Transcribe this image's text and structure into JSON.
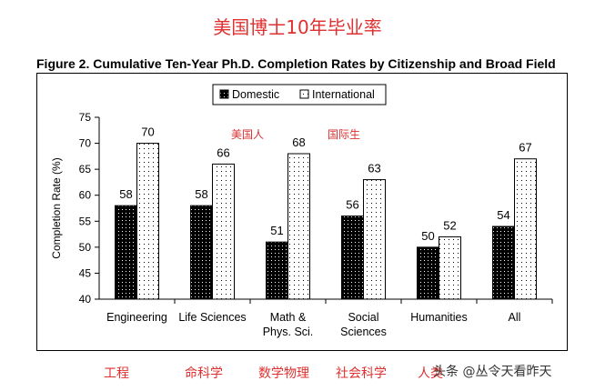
{
  "header": {
    "cn_title": "美国博士10年毕业率"
  },
  "chart_data": {
    "type": "bar",
    "title": "Figure 2. Cumulative Ten-Year Ph.D. Completion Rates by Citizenship and Broad Field",
    "ylabel": "Completion Rate (%)",
    "xlabel": "",
    "ylim": [
      40,
      75
    ],
    "yticks": [
      40,
      45,
      50,
      55,
      60,
      65,
      70,
      75
    ],
    "categories": [
      "Engineering",
      "Life Sciences",
      "Math &\nPhys. Sci.",
      "Social\nSciences",
      "Humanities",
      "All"
    ],
    "series": [
      {
        "name": "Domestic",
        "values": [
          58,
          58,
          51,
          56,
          50,
          54
        ],
        "pattern": "dark"
      },
      {
        "name": "International",
        "values": [
          70,
          66,
          68,
          63,
          52,
          67
        ],
        "pattern": "light"
      }
    ],
    "legend_position": "top-center",
    "grid": false
  },
  "annotations": {
    "domestic_cn": "美国人",
    "international_cn": "国际生"
  },
  "cn_labels": [
    "工程",
    "命科学",
    "数学物理",
    "社会科学",
    "人类"
  ],
  "watermark": "头条 @丛令天看昨天"
}
